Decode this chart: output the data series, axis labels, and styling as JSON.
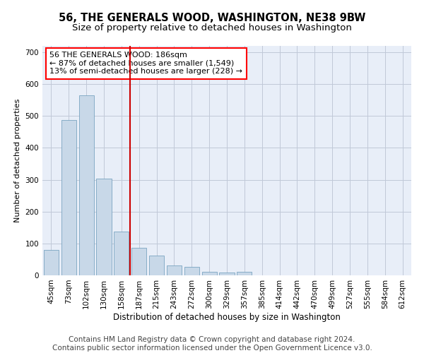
{
  "title": "56, THE GENERALS WOOD, WASHINGTON, NE38 9BW",
  "subtitle": "Size of property relative to detached houses in Washington",
  "xlabel": "Distribution of detached houses by size in Washington",
  "ylabel": "Number of detached properties",
  "bar_color": "#c8d8e8",
  "bar_edge_color": "#6898b8",
  "grid_color": "#c0c8d8",
  "background_color": "#e8eef8",
  "annotation_line1": "56 THE GENERALS WOOD: 186sqm",
  "annotation_line2": "← 87% of detached houses are smaller (1,549)",
  "annotation_line3": "13% of semi-detached houses are larger (228) →",
  "vline_color": "#cc0000",
  "categories": [
    "45sqm",
    "73sqm",
    "102sqm",
    "130sqm",
    "158sqm",
    "187sqm",
    "215sqm",
    "243sqm",
    "272sqm",
    "300sqm",
    "329sqm",
    "357sqm",
    "385sqm",
    "414sqm",
    "442sqm",
    "470sqm",
    "499sqm",
    "527sqm",
    "555sqm",
    "584sqm",
    "612sqm"
  ],
  "values": [
    80,
    487,
    565,
    303,
    137,
    86,
    63,
    31,
    27,
    10,
    9,
    10,
    0,
    0,
    0,
    0,
    0,
    0,
    0,
    0,
    0
  ],
  "ylim": [
    0,
    720
  ],
  "yticks": [
    0,
    100,
    200,
    300,
    400,
    500,
    600,
    700
  ],
  "footer": "Contains HM Land Registry data © Crown copyright and database right 2024.\nContains public sector information licensed under the Open Government Licence v3.0.",
  "footer_fontsize": 7.5,
  "title_fontsize": 10.5,
  "subtitle_fontsize": 9.5,
  "xlabel_fontsize": 8.5,
  "ylabel_fontsize": 8,
  "tick_fontsize": 7.5,
  "annot_fontsize": 8
}
